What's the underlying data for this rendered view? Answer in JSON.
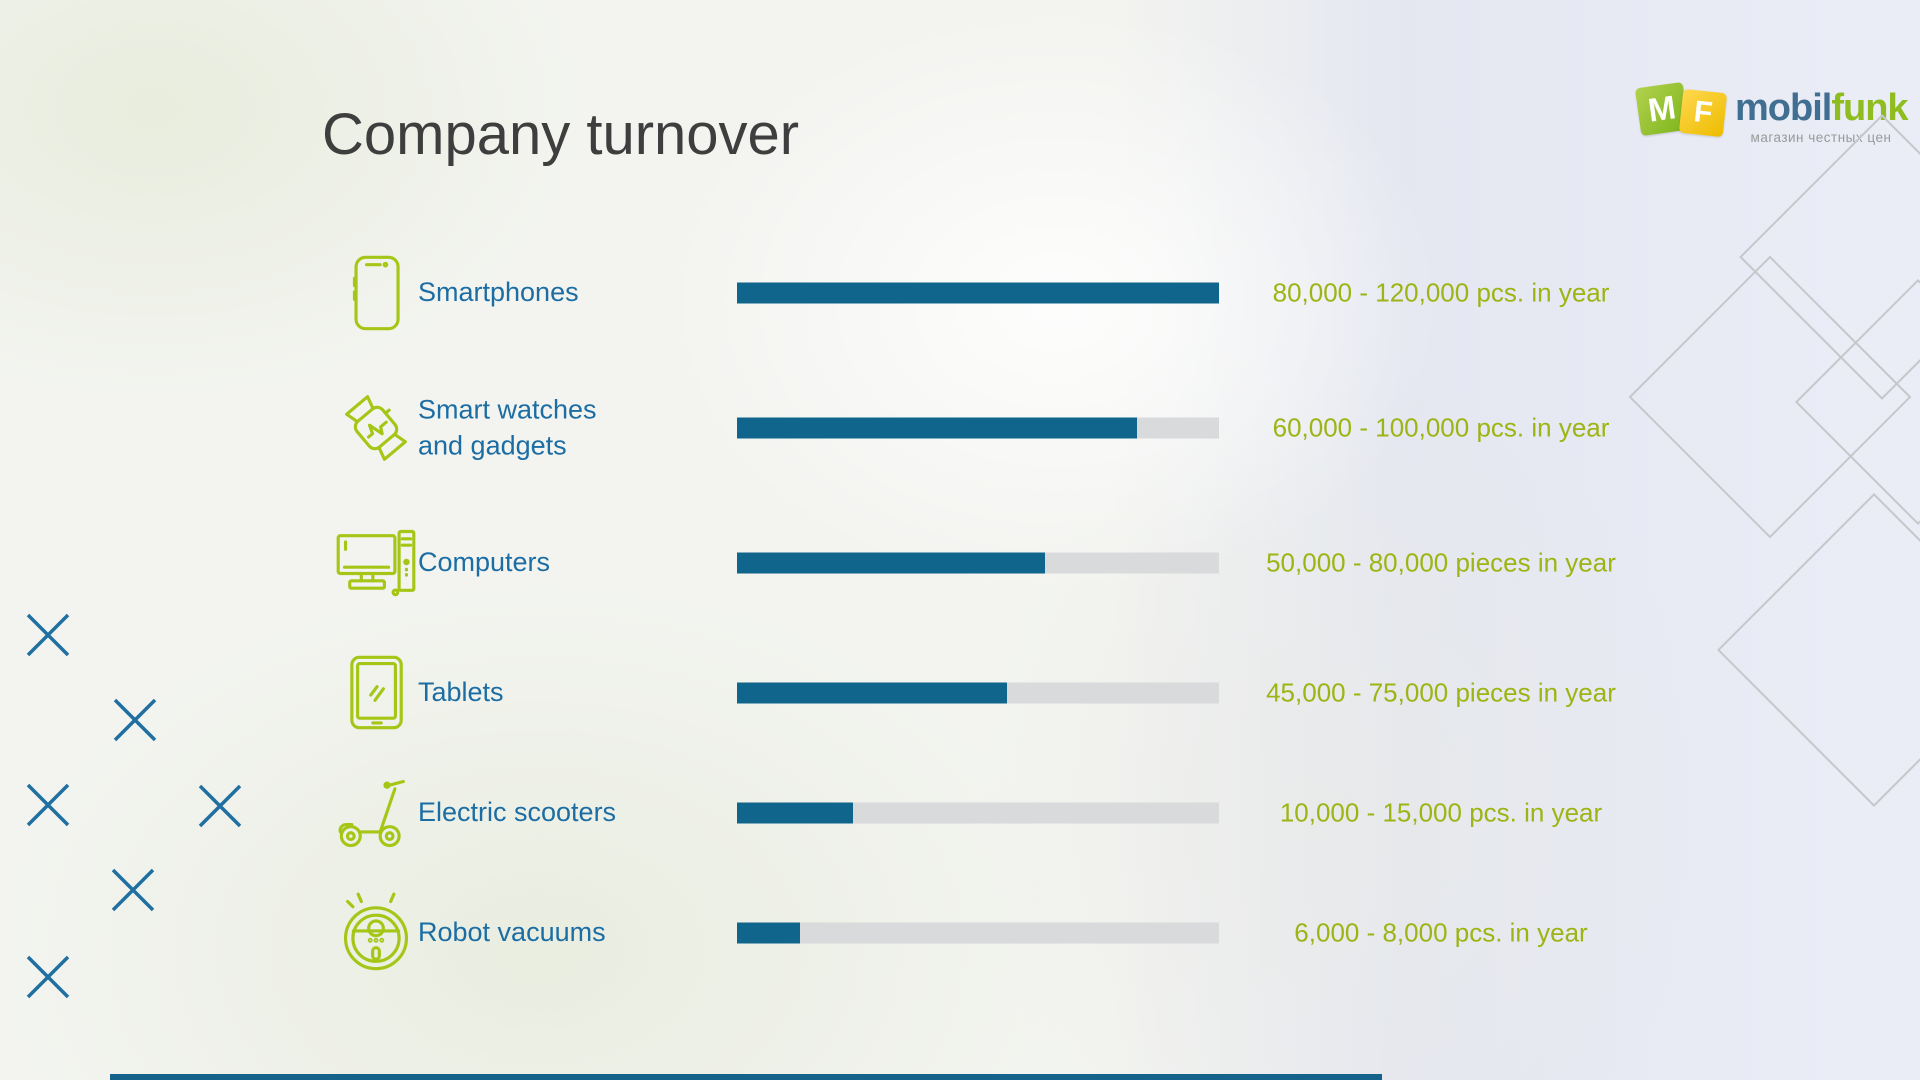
{
  "title": "Company turnover",
  "logo": {
    "letter_m": "M",
    "letter_f": "F",
    "name_blue": "mobil",
    "name_green": "funk",
    "tagline": "магазин честных цен"
  },
  "colors": {
    "bar_fill": "#10658d",
    "bar_track": "#d9dadb",
    "label_blue": "#1b6da3",
    "value_green": "#9db414",
    "icon_green": "#a5c616",
    "title_gray": "#3e3e3e",
    "xmark_blue": "#1f6fa1",
    "diamond_gray": "#c6c7cb",
    "logo_square_green": "#8db52a",
    "logo_square_yellow": "#f2c400"
  },
  "rows": [
    {
      "icon": "smartphone-icon",
      "label": "Smartphones",
      "label2": "",
      "pct": 100,
      "value": "80,000 - 120,000 pcs. in year"
    },
    {
      "icon": "smartwatch-icon",
      "label": "Smart watches",
      "label2": "and gadgets",
      "pct": 83,
      "value": "60,000 - 100,000 pcs. in year"
    },
    {
      "icon": "computer-icon",
      "label": "Computers",
      "label2": "",
      "pct": 64,
      "value": "50,000 - 80,000 pieces in year"
    },
    {
      "icon": "tablet-icon",
      "label": "Tablets",
      "label2": "",
      "pct": 56,
      "value": "45,000 - 75,000 pieces in year"
    },
    {
      "icon": "scooter-icon",
      "label": "Electric scooters",
      "label2": "",
      "pct": 24,
      "value": "10,000 - 15,000 pcs. in year"
    },
    {
      "icon": "robot-vacuum-icon",
      "label": "Robot vacuums",
      "label2": "",
      "pct": 13,
      "value": "6,000 - 8,000 pcs. in year"
    }
  ],
  "chart_data": {
    "type": "bar",
    "orientation": "horizontal",
    "title": "Company turnover",
    "categories": [
      "Smartphones",
      "Smart watches and gadgets",
      "Computers",
      "Tablets",
      "Electric scooters",
      "Robot vacuums"
    ],
    "value_labels": [
      "80,000 - 120,000 pcs. in year",
      "60,000 - 100,000 pcs. in year",
      "50,000 - 80,000 pieces in year",
      "45,000 - 75,000 pieces in year",
      "10,000 - 15,000 pcs. in year",
      "6,000 - 8,000 pcs. in year"
    ],
    "range_min": [
      80000,
      60000,
      50000,
      45000,
      10000,
      6000
    ],
    "range_max": [
      120000,
      100000,
      80000,
      75000,
      15000,
      8000
    ],
    "bar_fill_percent": [
      100,
      83,
      64,
      56,
      24,
      13
    ],
    "xlabel": "",
    "ylabel": "",
    "grid": false,
    "legend": false
  }
}
